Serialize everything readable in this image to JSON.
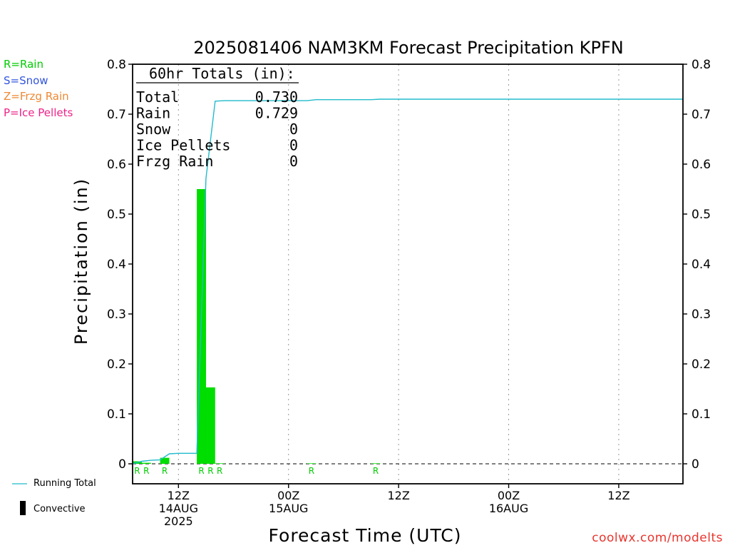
{
  "header": {
    "title": "2025081406 NAM3KM Forecast Precipitation KPFN"
  },
  "type_legend": [
    {
      "label": "R=Rain",
      "color": "#00cc00"
    },
    {
      "label": "S=Snow",
      "color": "#3355dd"
    },
    {
      "label": "Z=Frzg Rain",
      "color": "#ee8833"
    },
    {
      "label": "P=Ice Pellets",
      "color": "#ee2288"
    }
  ],
  "bottom_legend": {
    "running_total": "Running Total",
    "convective": "Convective"
  },
  "credit": "coolwx.com/modelts",
  "totals_box": {
    "heading": "60hr Totals (in):",
    "rows": [
      {
        "label": "Total",
        "value": "0.730"
      },
      {
        "label": "Rain",
        "value": "0.729"
      },
      {
        "label": "Snow",
        "value": "0"
      },
      {
        "label": "Ice Pellets",
        "value": "0"
      },
      {
        "label": "Frzg Rain",
        "value": "0"
      }
    ]
  },
  "chart_data": {
    "type": "bar",
    "title": "2025081406 NAM3KM Forecast Precipitation KPFN",
    "xlabel": "Forecast Time (UTC)",
    "ylabel": "Precipitation (in)",
    "ylim": [
      -0.04,
      0.8
    ],
    "yticks": [
      0,
      0.1,
      0.2,
      0.3,
      0.4,
      0.5,
      0.6,
      0.7,
      0.8
    ],
    "ytick_labels": [
      "0",
      "0.1",
      "0.2",
      "0.3",
      "0.4",
      "0.5",
      "0.6",
      "0.7",
      "0.8"
    ],
    "x_unit": "forecast hour",
    "xlim": [
      1,
      61
    ],
    "xticks": [
      {
        "hour": 6,
        "lines": [
          "12Z",
          "14AUG",
          "2025"
        ]
      },
      {
        "hour": 18,
        "lines": [
          "00Z",
          "15AUG"
        ]
      },
      {
        "hour": 30,
        "lines": [
          "12Z"
        ]
      },
      {
        "hour": 42,
        "lines": [
          "00Z",
          "16AUG"
        ]
      },
      {
        "hour": 54,
        "lines": [
          "12Z"
        ]
      }
    ],
    "bars": [
      {
        "hour": 2,
        "value": 0.005
      },
      {
        "hour": 3,
        "value": 0.002
      },
      {
        "hour": 5,
        "value": 0.012
      },
      {
        "hour": 9,
        "value": 0.55
      },
      {
        "hour": 10,
        "value": 0.153
      },
      {
        "hour": 11,
        "value": 0.001
      },
      {
        "hour": 21,
        "value": 0.001
      },
      {
        "hour": 28,
        "value": 0.001
      }
    ],
    "type_markers": [
      {
        "hour": 2,
        "label": "R"
      },
      {
        "hour": 3,
        "label": "R"
      },
      {
        "hour": 5,
        "label": "R"
      },
      {
        "hour": 9,
        "label": "R"
      },
      {
        "hour": 10,
        "label": "R"
      },
      {
        "hour": 11,
        "label": "R"
      },
      {
        "hour": 21,
        "label": "R"
      },
      {
        "hour": 28,
        "label": "R"
      }
    ],
    "running_total": {
      "name": "Running Total",
      "x": [
        1,
        2,
        3,
        4,
        5,
        6,
        7,
        8,
        9,
        10,
        11,
        20,
        21,
        27,
        28,
        61
      ],
      "y": [
        0,
        0.005,
        0.007,
        0.008,
        0.02,
        0.021,
        0.021,
        0.021,
        0.571,
        0.726,
        0.727,
        0.727,
        0.729,
        0.729,
        0.73,
        0.73
      ]
    },
    "bar_color": "#00dd00",
    "line_color": "#22bbcc",
    "grid": "vertical-dotted"
  }
}
